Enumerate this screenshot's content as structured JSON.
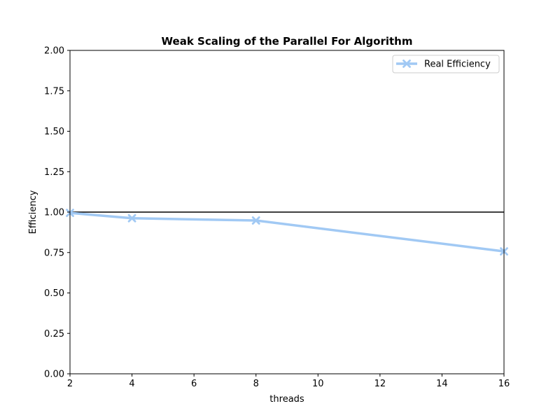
{
  "chart_data": {
    "type": "line",
    "title": "Weak Scaling of the Parallel For Algorithm",
    "xlabel": "threads",
    "ylabel": "Efficiency",
    "xlim": [
      2,
      16
    ],
    "ylim": [
      0,
      2
    ],
    "xticks": [
      2,
      4,
      6,
      8,
      10,
      12,
      14,
      16
    ],
    "yticks": [
      0,
      0.25,
      0.5,
      0.75,
      1.0,
      1.25,
      1.5,
      1.75,
      2.0
    ],
    "ytick_labels": [
      "0.00",
      "0.25",
      "0.50",
      "0.75",
      "1.00",
      "1.25",
      "1.50",
      "1.75",
      "2.00"
    ],
    "grid": false,
    "legend_position": "top-right",
    "reference_line": {
      "y": 1.0,
      "color": "#000000"
    },
    "series": [
      {
        "name": "Real Efficiency",
        "color": "#a1c9f4",
        "marker": "x",
        "x": [
          2,
          4,
          8,
          16
        ],
        "y": [
          0.995,
          0.962,
          0.948,
          0.757
        ]
      }
    ]
  }
}
